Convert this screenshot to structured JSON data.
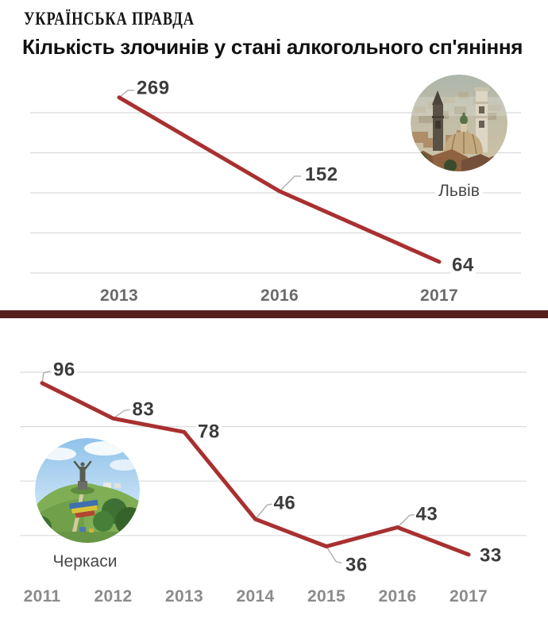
{
  "brand": {
    "name": "УКРАЇНСЬКА ПРАВДА"
  },
  "title": "Кількість злочинів у стані алкогольного сп'яніння",
  "colors": {
    "line": "#a93030",
    "divider": "#571e1e",
    "grid": "#dbdbdb",
    "leader": "#b3b3b3",
    "value_label": "#3c3c3c",
    "year_label_top": "#6a6a6a",
    "year_label_bottom": "#8b8b8b",
    "city_label": "#484848",
    "title_text": "#111111"
  },
  "chart_data": [
    {
      "type": "line",
      "city": "Львів",
      "categories": [
        "2013",
        "2016",
        "2017"
      ],
      "values": [
        269,
        152,
        64
      ],
      "ylim": [
        50,
        250
      ],
      "gridline_values": [
        250,
        200,
        150,
        100,
        50
      ],
      "grid": true,
      "legend_position": "none"
    },
    {
      "type": "line",
      "city": "Черкаси",
      "categories": [
        "2011",
        "2012",
        "2013",
        "2014",
        "2015",
        "2016",
        "2017"
      ],
      "values": [
        96,
        83,
        78,
        46,
        36,
        43,
        33
      ],
      "ylim": [
        40,
        100
      ],
      "gridline_values": [
        100,
        80,
        60,
        40
      ],
      "grid": true,
      "legend_position": "none"
    }
  ]
}
